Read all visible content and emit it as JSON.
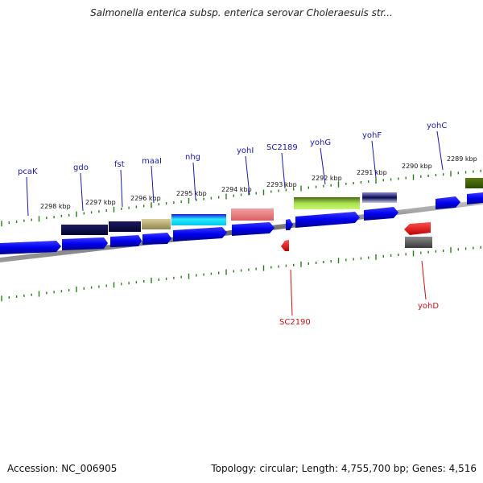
{
  "title": "Salmonella enterica subsp. enterica serovar Choleraesuis str...",
  "footer": {
    "accession": "Accession: NC_006905",
    "summary": "Topology: circular; Length: 4,755,700 bp; Genes: 4,516"
  },
  "colors": {
    "upper_gene_label": "#1a1aa8",
    "lower_gene_label": "#cc1111",
    "tick": "#2a7a1a",
    "backbone": "#8a8a8a"
  },
  "kbp_labels": [
    "2298 kbp",
    "2297 kbp",
    "2296 kbp",
    "2295 kbp",
    "2294 kbp",
    "2293 kbp",
    "2292 kbp",
    "2291 kbp",
    "2290 kbp",
    "2289 kbp"
  ],
  "upper_genes": [
    "pcaK",
    "gdo",
    "fst",
    "maaI",
    "nhg",
    "yohI",
    "SC2189",
    "yohG",
    "yohF",
    "yohC"
  ],
  "lower_genes": [
    "SC2190",
    "yohD"
  ]
}
